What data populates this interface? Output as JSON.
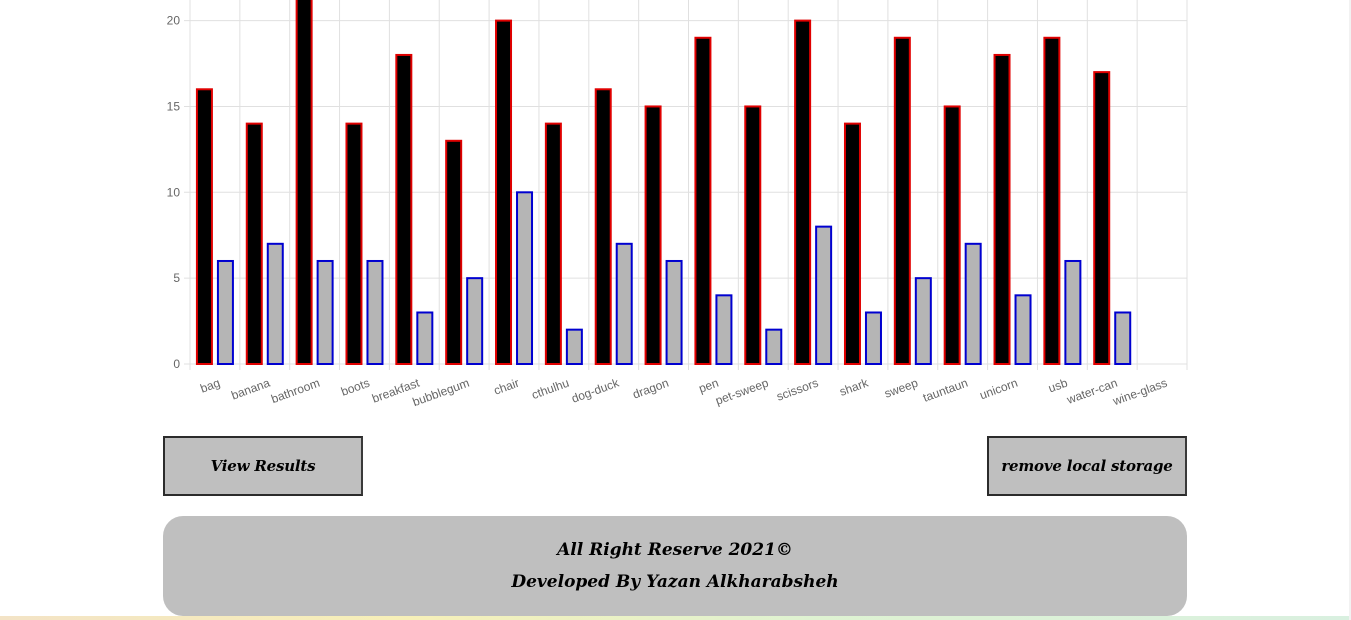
{
  "chart_data": {
    "type": "bar",
    "categories": [
      "bag",
      "banana",
      "bathroom",
      "boots",
      "breakfast",
      "bubblegum",
      "chair",
      "cthulhu",
      "dog-duck",
      "dragon",
      "pen",
      "pet-sweep",
      "scissors",
      "shark",
      "sweep",
      "tauntaun",
      "unicorn",
      "usb",
      "water-can",
      "wine-glass"
    ],
    "series": [
      {
        "values": [
          16,
          14,
          22,
          14,
          18,
          13,
          20,
          14,
          16,
          15,
          19,
          15,
          20,
          14,
          19,
          15,
          18,
          19,
          17,
          0
        ],
        "fill": "#000000",
        "stroke": "#e00000"
      },
      {
        "values": [
          6,
          7,
          6,
          6,
          3,
          5,
          10,
          2,
          7,
          6,
          4,
          2,
          8,
          3,
          5,
          7,
          4,
          6,
          3,
          0
        ],
        "fill": "#b5b5b5",
        "stroke": "#0000d0"
      }
    ],
    "y_ticks": [
      0,
      5,
      10,
      15,
      20
    ],
    "ylim": [
      0,
      21.2
    ],
    "grid": true,
    "title": "",
    "xlabel": "",
    "ylabel": ""
  },
  "buttons": {
    "view_results": "View Results",
    "remove_storage": "remove local storage"
  },
  "footer": {
    "line1": "All Right Reserve 2021©",
    "line2": "Developed By Yazan Alkharabsheh"
  }
}
